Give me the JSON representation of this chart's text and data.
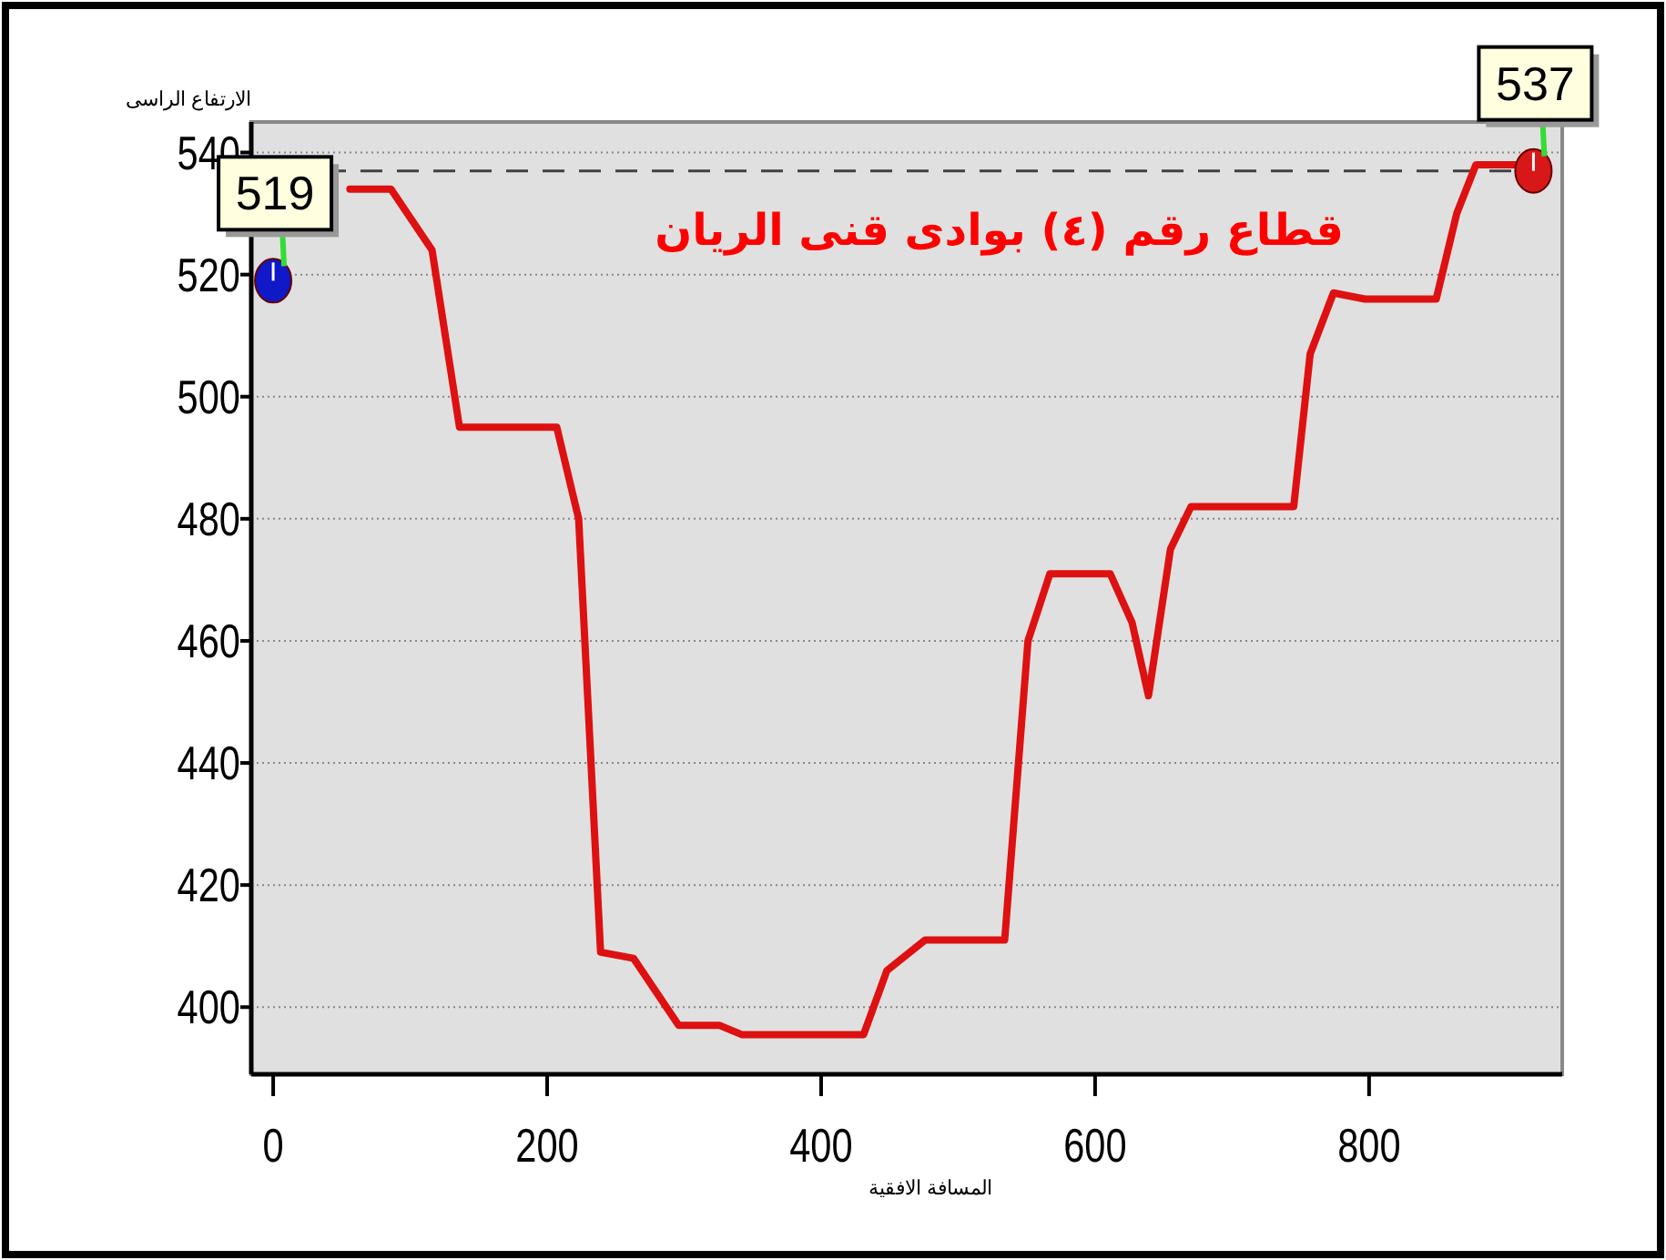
{
  "chart_data": {
    "type": "line",
    "title": "قطاع رقم (٤) بوادى قنى الريان",
    "xlabel": "المسافة الافقية",
    "ylabel": "الارتفاع الراسى",
    "xlim": [
      -16,
      941
    ],
    "xticks": [
      0,
      200,
      400,
      600,
      800
    ],
    "ylim": [
      389,
      545
    ],
    "yticks": [
      400,
      420,
      440,
      460,
      480,
      500,
      520,
      540
    ],
    "grid": "y",
    "line_style": "solid",
    "series": [
      {
        "color": "#dd1111",
        "marker": "none",
        "x": [
          56,
          86,
          116,
          136,
          207,
          223,
          239,
          263,
          296,
          326,
          342,
          431,
          448,
          476,
          534,
          551,
          567,
          611,
          627,
          639,
          655,
          670,
          745,
          757,
          774,
          797,
          849,
          864,
          878,
          920
        ],
        "values": [
          534,
          534,
          524,
          495,
          495,
          480,
          409,
          408,
          397,
          397,
          395.5,
          395.5,
          406,
          411,
          411,
          460,
          471,
          471,
          463,
          451,
          475,
          482,
          482,
          507,
          517,
          516,
          516,
          530,
          538,
          538
        ]
      },
      {
        "type": "scatter",
        "marker": "circle",
        "x": [
          0,
          920
        ],
        "values": [
          519,
          537
        ],
        "colors": [
          "#1018c8",
          "#d81818"
        ],
        "value_labels": [
          "519",
          "537"
        ]
      }
    ],
    "ref_lines": [
      {
        "axis": "y",
        "value": 537,
        "color": "#404040",
        "line_style": "dashed"
      }
    ]
  }
}
